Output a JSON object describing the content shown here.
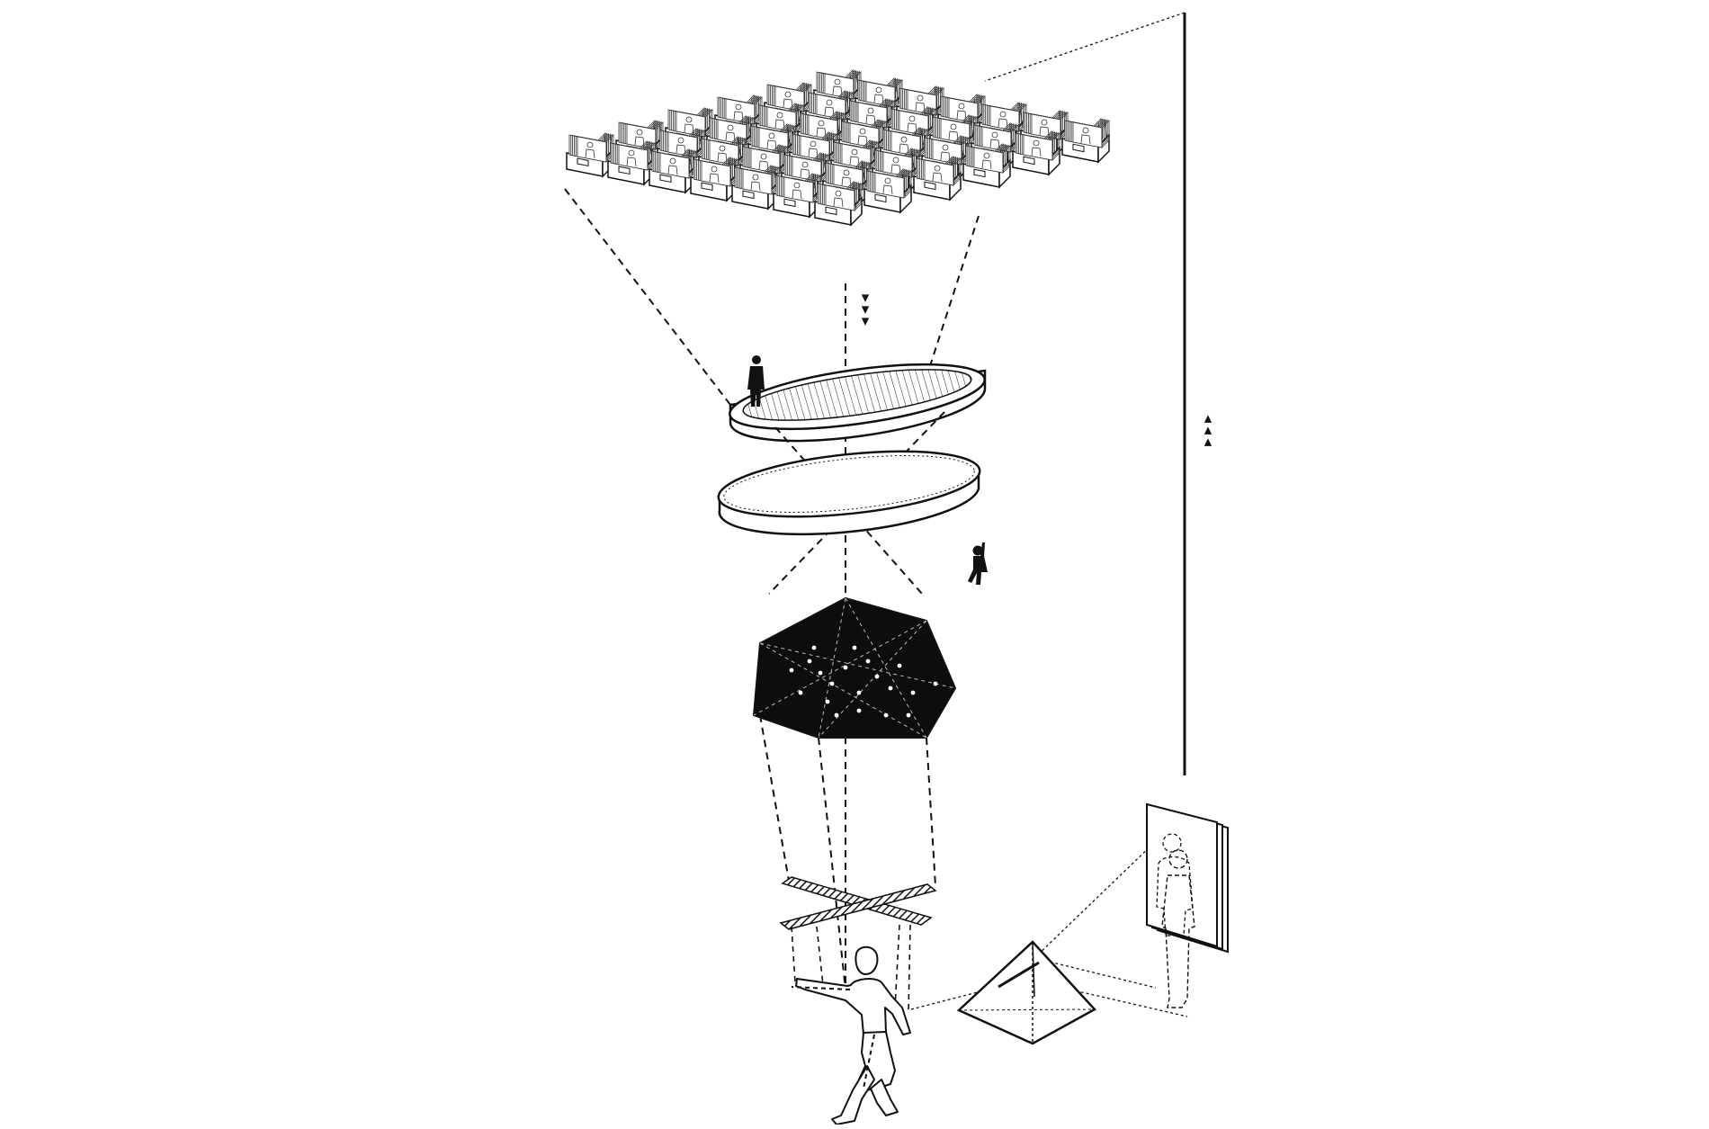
{
  "figure": {
    "background": "#ffffff",
    "ink": "#111111",
    "components": [
      "archive-grid",
      "disc-platform-upper",
      "disc-platform-lower",
      "star-polyhedron",
      "hatched-cross",
      "walking-figure",
      "pyramid",
      "stacked-portrait-frames",
      "vertical-rod"
    ],
    "markers": {
      "down_arrows": "▼▼▼",
      "up_arrows": "▲▲▲"
    }
  }
}
